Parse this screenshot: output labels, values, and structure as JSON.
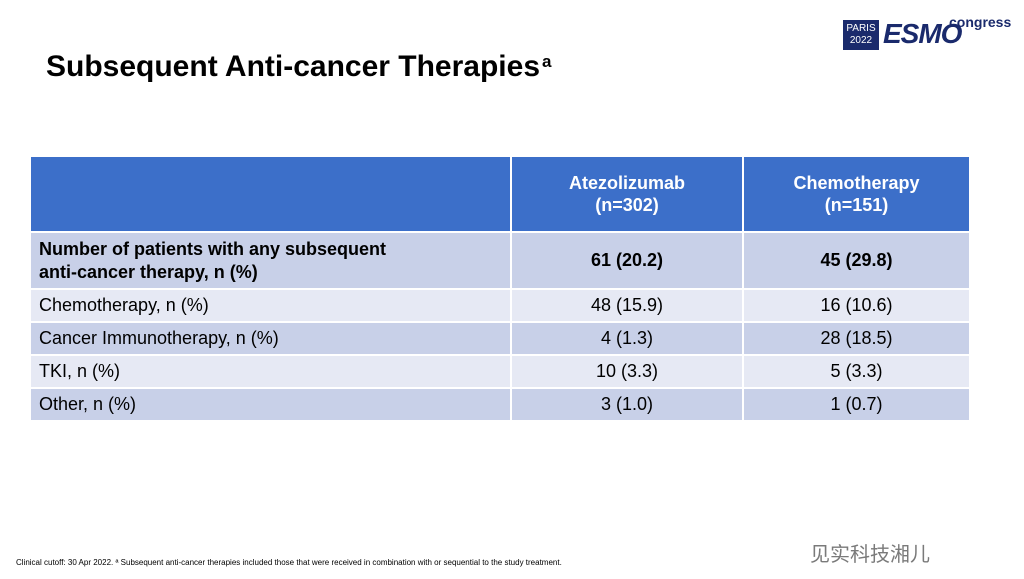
{
  "logo": {
    "city": "PARIS",
    "year": "2022",
    "brand": "ESMO",
    "suffix": "congress"
  },
  "title": "Subsequent Anti-cancer Therapies",
  "title_superscript": "a",
  "table": {
    "headers": [
      {
        "line1": "",
        "line2": ""
      },
      {
        "line1": "Atezolizumab",
        "line2": "(n=302)"
      },
      {
        "line1": "Chemotherapy",
        "line2": "(n=151)"
      }
    ],
    "rows": [
      {
        "label_line1": "Number of patients with any subsequent",
        "label_line2": "anti-cancer therapy, n (%)",
        "atezolizumab": "61 (20.2)",
        "chemotherapy": "45 (29.8)"
      },
      {
        "label_line1": "Chemotherapy, n (%)",
        "label_line2": "",
        "atezolizumab": "48 (15.9)",
        "chemotherapy": "16 (10.6)"
      },
      {
        "label_line1": "Cancer Immunotherapy, n (%)",
        "label_line2": "",
        "atezolizumab": "4 (1.3)",
        "chemotherapy": "28 (18.5)"
      },
      {
        "label_line1": "TKI, n (%)",
        "label_line2": "",
        "atezolizumab": "10 (3.3)",
        "chemotherapy": "5 (3.3)"
      },
      {
        "label_line1": "Other, n (%)",
        "label_line2": "",
        "atezolizumab": "3 (1.0)",
        "chemotherapy": "1 (0.7)"
      }
    ]
  },
  "footnote": "Clinical cutoff: 30 Apr 2022. ª Subsequent anti-cancer therapies included those that were received in combination with or sequential to the study treatment.",
  "watermark": "见实科技湘儿",
  "colors": {
    "header_bg": "#3c6fc9",
    "row_dark": "#c8d0e8",
    "row_light": "#e6e9f4",
    "brand": "#1a2a6c"
  }
}
